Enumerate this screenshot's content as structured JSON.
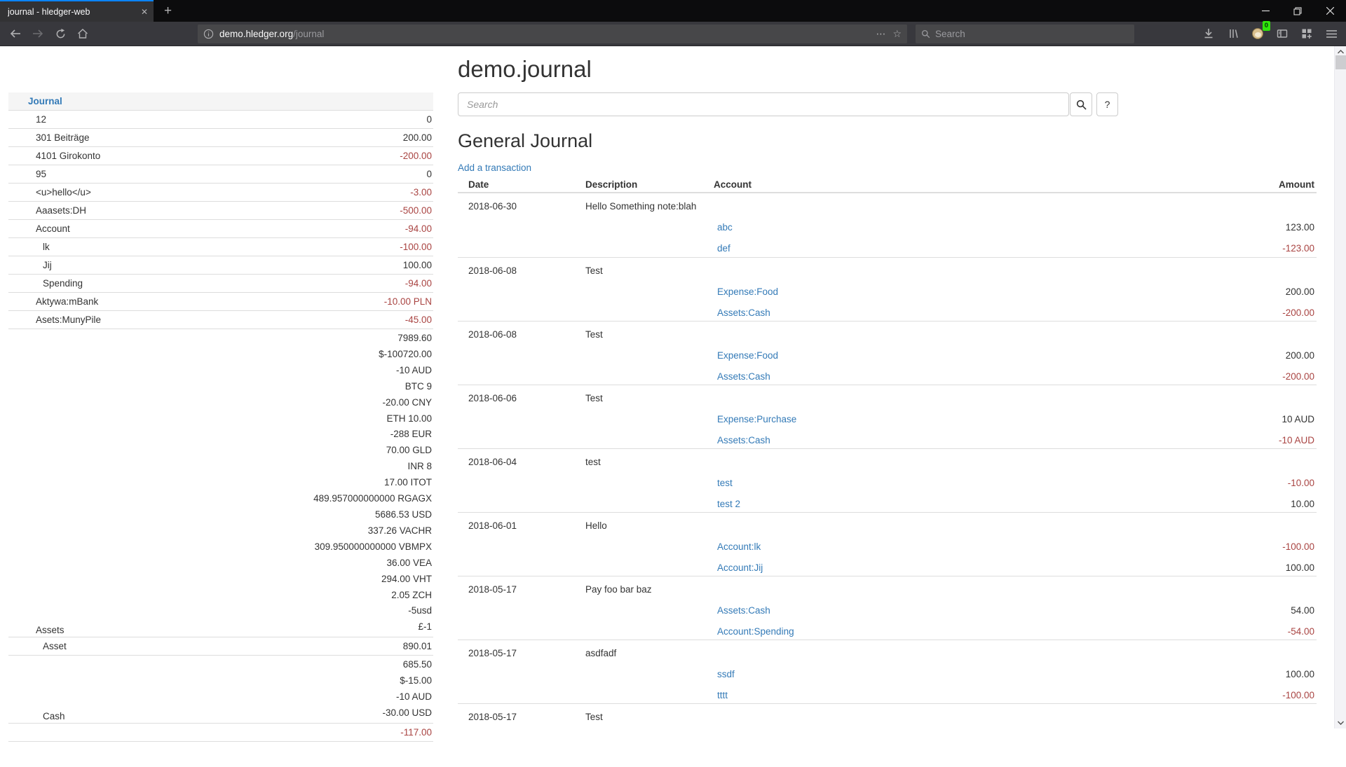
{
  "browser": {
    "tab_title": "journal - hledger-web",
    "url_host": "demo.hledger.org",
    "url_path": "/journal",
    "toolbar_search_placeholder": "Search",
    "extension_badge": "0"
  },
  "colors": {
    "link_blue": "#337ab7",
    "negative_red": "#a94442",
    "tab_accent": "#0a84ff"
  },
  "sidebar": {
    "title": "Journal",
    "rows": [
      {
        "name": "12",
        "depth": 1,
        "amounts": [
          {
            "text": "0",
            "neg": false
          }
        ]
      },
      {
        "name": "301 Beiträge",
        "depth": 1,
        "amounts": [
          {
            "text": "200.00",
            "neg": false
          }
        ]
      },
      {
        "name": "4101 Girokonto",
        "depth": 1,
        "amounts": [
          {
            "text": "-200.00",
            "neg": true
          }
        ]
      },
      {
        "name": "95",
        "depth": 1,
        "amounts": [
          {
            "text": "0",
            "neg": false
          }
        ]
      },
      {
        "name": "<u>hello</u>",
        "depth": 1,
        "amounts": [
          {
            "text": "-3.00",
            "neg": true
          }
        ]
      },
      {
        "name": "Aaasets:DH",
        "depth": 1,
        "amounts": [
          {
            "text": "-500.00",
            "neg": true
          }
        ]
      },
      {
        "name": "Account",
        "depth": 1,
        "amounts": [
          {
            "text": "-94.00",
            "neg": true
          }
        ]
      },
      {
        "name": "lk",
        "depth": 2,
        "amounts": [
          {
            "text": "-100.00",
            "neg": true
          }
        ]
      },
      {
        "name": "Jij",
        "depth": 2,
        "amounts": [
          {
            "text": "100.00",
            "neg": false
          }
        ]
      },
      {
        "name": "Spending",
        "depth": 2,
        "amounts": [
          {
            "text": "-94.00",
            "neg": true
          }
        ]
      },
      {
        "name": "Aktywa:mBank",
        "depth": 1,
        "amounts": [
          {
            "text": "-10.00 PLN",
            "neg": true
          }
        ]
      },
      {
        "name": "Asets:MunyPile",
        "depth": 1,
        "amounts": [
          {
            "text": "-45.00",
            "neg": true
          }
        ]
      },
      {
        "name": "Assets",
        "depth": 1,
        "amounts": [
          {
            "text": "7989.60",
            "neg": false
          },
          {
            "text": "$-100720.00",
            "neg": false
          },
          {
            "text": "-10 AUD",
            "neg": false
          },
          {
            "text": "BTC 9",
            "neg": false
          },
          {
            "text": "-20.00 CNY",
            "neg": false
          },
          {
            "text": "ETH 10.00",
            "neg": false
          },
          {
            "text": "-288 EUR",
            "neg": false
          },
          {
            "text": "70.00 GLD",
            "neg": false
          },
          {
            "text": "INR 8",
            "neg": false
          },
          {
            "text": "17.00 ITOT",
            "neg": false
          },
          {
            "text": "489.957000000000 RGAGX",
            "neg": false
          },
          {
            "text": "5686.53 USD",
            "neg": false
          },
          {
            "text": "337.26 VACHR",
            "neg": false
          },
          {
            "text": "309.950000000000 VBMPX",
            "neg": false
          },
          {
            "text": "36.00 VEA",
            "neg": false
          },
          {
            "text": "294.00 VHT",
            "neg": false
          },
          {
            "text": "2.05 ZCH",
            "neg": false
          },
          {
            "text": "-5usd",
            "neg": false
          },
          {
            "text": "£-1",
            "neg": false
          }
        ]
      },
      {
        "name": "Asset",
        "depth": 2,
        "amounts": [
          {
            "text": "890.01",
            "neg": false
          }
        ]
      },
      {
        "name": "Cash",
        "depth": 2,
        "amounts": [
          {
            "text": "685.50",
            "neg": false
          },
          {
            "text": "$-15.00",
            "neg": false
          },
          {
            "text": "-10 AUD",
            "neg": false
          },
          {
            "text": "-30.00 USD",
            "neg": false
          }
        ]
      },
      {
        "name": "",
        "depth": 1,
        "amounts": [
          {
            "text": "-117.00",
            "neg": true
          }
        ]
      }
    ]
  },
  "main": {
    "page_title": "demo.journal",
    "search_placeholder": "Search",
    "help_button_label": "?",
    "section_title": "General Journal",
    "add_transaction_label": "Add a transaction",
    "columns": [
      "Date",
      "Description",
      "Account",
      "Amount"
    ],
    "transactions": [
      {
        "date": "2018-06-30",
        "description": "Hello Something note:blah",
        "postings": [
          {
            "account": "abc",
            "amount": "123.00",
            "neg": false
          },
          {
            "account": "def",
            "amount": "-123.00",
            "neg": true
          }
        ]
      },
      {
        "date": "2018-06-08",
        "description": "Test",
        "postings": [
          {
            "account": "Expense:Food",
            "amount": "200.00",
            "neg": false
          },
          {
            "account": "Assets:Cash",
            "amount": "-200.00",
            "neg": true
          }
        ]
      },
      {
        "date": "2018-06-08",
        "description": "Test",
        "postings": [
          {
            "account": "Expense:Food",
            "amount": "200.00",
            "neg": false
          },
          {
            "account": "Assets:Cash",
            "amount": "-200.00",
            "neg": true
          }
        ]
      },
      {
        "date": "2018-06-06",
        "description": "Test",
        "postings": [
          {
            "account": "Expense:Purchase",
            "amount": "10 AUD",
            "neg": false
          },
          {
            "account": "Assets:Cash",
            "amount": "-10 AUD",
            "neg": true
          }
        ]
      },
      {
        "date": "2018-06-04",
        "description": "test",
        "postings": [
          {
            "account": "test",
            "amount": "-10.00",
            "neg": true
          },
          {
            "account": "test 2",
            "amount": "10.00",
            "neg": false
          }
        ]
      },
      {
        "date": "2018-06-01",
        "description": "Hello",
        "postings": [
          {
            "account": "Account:lk",
            "amount": "-100.00",
            "neg": true
          },
          {
            "account": "Account:Jij",
            "amount": "100.00",
            "neg": false
          }
        ]
      },
      {
        "date": "2018-05-17",
        "description": "Pay foo bar baz",
        "postings": [
          {
            "account": "Assets:Cash",
            "amount": "54.00",
            "neg": false
          },
          {
            "account": "Account:Spending",
            "amount": "-54.00",
            "neg": true
          }
        ]
      },
      {
        "date": "2018-05-17",
        "description": "asdfadf",
        "postings": [
          {
            "account": "ssdf",
            "amount": "100.00",
            "neg": false
          },
          {
            "account": "tttt",
            "amount": "-100.00",
            "neg": true
          }
        ]
      },
      {
        "date": "2018-05-17",
        "description": "Test",
        "postings": []
      }
    ]
  }
}
